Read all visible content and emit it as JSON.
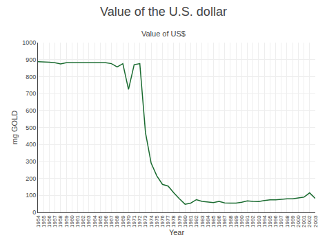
{
  "chart_data": {
    "type": "line",
    "title": "Value of the U.S. dollar",
    "subtitle": "Value of US$",
    "xlabel": "Year",
    "ylabel": "mg GOLD",
    "color": "#1a6b30",
    "x": [
      1954,
      1955,
      1956,
      1957,
      1958,
      1959,
      1960,
      1961,
      1962,
      1963,
      1964,
      1965,
      1966,
      1967,
      1968,
      1969,
      1970,
      1971,
      1972,
      1973,
      1974,
      1975,
      1976,
      1977,
      1978,
      1979,
      1980,
      1981,
      1982,
      1983,
      1984,
      1985,
      1986,
      1987,
      1988,
      1989,
      1990,
      1991,
      1992,
      1993,
      1994,
      1995,
      1996,
      1997,
      1998,
      1999,
      2000,
      2001,
      2002,
      2003
    ],
    "values": [
      888,
      888,
      885,
      882,
      875,
      882,
      882,
      882,
      882,
      882,
      882,
      882,
      882,
      876,
      857,
      876,
      724,
      870,
      876,
      470,
      290,
      215,
      165,
      155,
      115,
      80,
      48,
      55,
      75,
      65,
      60,
      58,
      65,
      56,
      55,
      55,
      60,
      68,
      65,
      64,
      70,
      74,
      74,
      78,
      80,
      80,
      85,
      90,
      115,
      82
    ],
    "xlim": [
      1954,
      2003
    ],
    "xticks": [
      1954,
      1955,
      1956,
      1957,
      1958,
      1959,
      1960,
      1961,
      1962,
      1963,
      1964,
      1965,
      1966,
      1967,
      1968,
      1969,
      1970,
      1971,
      1972,
      1973,
      1974,
      1975,
      1976,
      1977,
      1978,
      1979,
      1980,
      1981,
      1982,
      1983,
      1984,
      1985,
      1986,
      1987,
      1988,
      1989,
      1990,
      1991,
      1992,
      1993,
      1994,
      1995,
      1996,
      1997,
      1998,
      1999,
      2000,
      2001,
      2002,
      2003
    ],
    "ylim": [
      0,
      1000
    ],
    "yticks": [
      0,
      100,
      200,
      300,
      400,
      500,
      600,
      700,
      800,
      900,
      1000
    ],
    "grid": true
  }
}
